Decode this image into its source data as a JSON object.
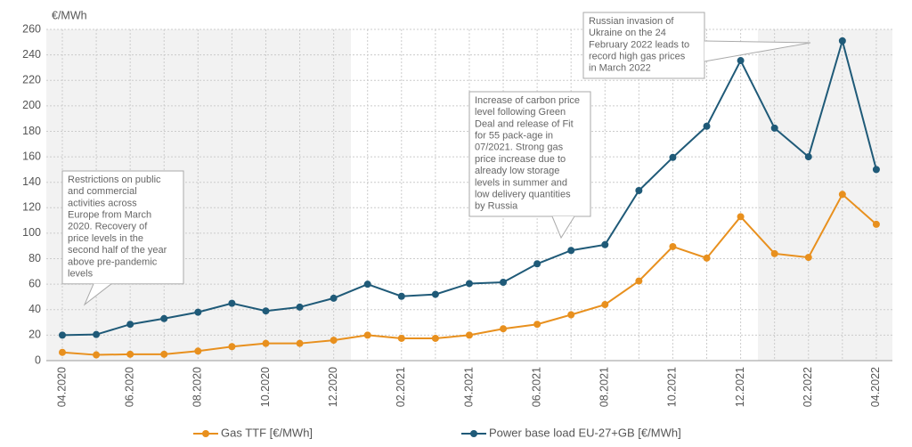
{
  "chart_data": {
    "type": "line",
    "y_label": "€/MWh",
    "categories": [
      "04.2020",
      null,
      "06.2020",
      null,
      "08.2020",
      null,
      "10.2020",
      null,
      "12.2020",
      null,
      "02.2021",
      null,
      "04.2021",
      null,
      "06.2021",
      null,
      "08.2021",
      null,
      "10.2021",
      null,
      "12.2021",
      null,
      "02.2022",
      null,
      "04.2022"
    ],
    "series": [
      {
        "name": "Gas TTF [€/MWh]",
        "color": "#e8901e",
        "values": [
          6.5,
          4.5,
          5,
          5,
          7.5,
          11,
          13.5,
          13.5,
          16,
          20,
          17.5,
          17.5,
          20,
          25,
          28.5,
          36,
          44,
          62.5,
          89.5,
          80.5,
          113,
          84,
          81,
          130.5,
          107
        ]
      },
      {
        "name": "Power base load EU-27+GB [€/MWh]",
        "color": "#1f5a78",
        "values": [
          20,
          20.5,
          28.5,
          33,
          38,
          45,
          39,
          42,
          49,
          60,
          50.5,
          52,
          60.5,
          61.5,
          76,
          86.5,
          91,
          133.5,
          159.5,
          184,
          235.5,
          182.5,
          160,
          251,
          150
        ]
      }
    ],
    "ylim": [
      0,
      260
    ],
    "yticks": [
      0,
      20,
      40,
      60,
      80,
      100,
      120,
      140,
      160,
      180,
      200,
      220,
      240,
      260
    ],
    "grid": true,
    "annotations": [
      {
        "lines": [
          "Restrictions on public",
          "and commercial",
          "activities across",
          "Europe from March",
          "2020. Recovery of",
          "price levels in the",
          "second half of the year",
          "above pre-pandemic",
          "levels"
        ]
      },
      {
        "lines": [
          "Increase of carbon price",
          "level following Green",
          "Deal and release of Fit",
          "for 55 pack-age in",
          "07/2021. Strong gas",
          "price increase due to",
          "already low storage",
          "levels in summer and",
          "low delivery quantities",
          "by Russia"
        ]
      },
      {
        "lines": [
          "Russian invasion of",
          "Ukraine on the 24",
          "February 2022 leads to",
          "record high gas prices",
          "in March 2022"
        ]
      }
    ]
  }
}
